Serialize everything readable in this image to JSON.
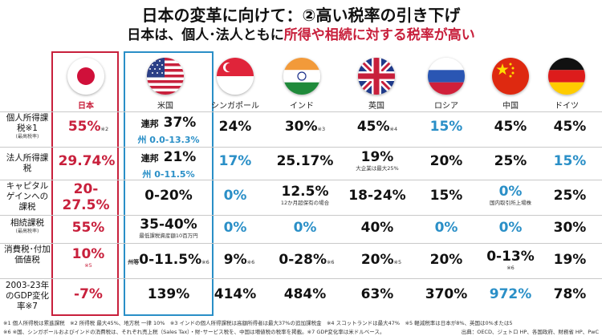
{
  "title": "日本の変革に向けて：②高い税率の引き下げ",
  "subtitle_pre": "日本は、個人･法人ともに",
  "subtitle_red": "所得や相続に対する税率が高い",
  "countries": [
    "日本",
    "米国",
    "シンガポール",
    "インド",
    "英国",
    "ロシア",
    "中国",
    "ドイツ"
  ],
  "rows": {
    "r1": {
      "label": "個人所得課税※1",
      "small": "(最高税率)"
    },
    "r2": {
      "label": "法人所得課税"
    },
    "r3": {
      "label": "キャピタルゲインへの課税"
    },
    "r4": {
      "label": "相続課税",
      "small": "(最高税率)"
    },
    "r5": {
      "label": "消費税･付加価値税"
    },
    "r6": {
      "label": "2003-23年のGDP変化率※7"
    }
  },
  "cells": {
    "jp_r1": "55%",
    "jp_r1_note": "※2",
    "us_r1_fed": "連邦",
    "us_r1": "37%",
    "us_r1_state": "州 0.0-13.3%",
    "sg_r1": "24%",
    "in_r1": "30%",
    "in_r1_note": "※3",
    "uk_r1": "45%",
    "uk_r1_note": "※4",
    "ru_r1": "15%",
    "cn_r1": "45%",
    "de_r1": "45%",
    "jp_r2": "29.74%",
    "us_r2_fed": "連邦",
    "us_r2": "21%",
    "us_r2_state": "州 0-11.5%",
    "sg_r2": "17%",
    "in_r2": "25.17%",
    "uk_r2": "19%",
    "uk_r2_sub": "大企業は最大25%",
    "ru_r2": "20%",
    "cn_r2": "25%",
    "de_r2": "15%",
    "jp_r3": "20-27.5%",
    "us_r3": "0-20%",
    "sg_r3": "0%",
    "in_r3": "12.5%",
    "in_r3_sub": "12か月超保有の場合",
    "uk_r3": "18-24%",
    "ru_r3": "15%",
    "cn_r3": "0%",
    "cn_r3_sub": "国内取引所上場株",
    "de_r3": "25%",
    "jp_r4": "55%",
    "us_r4": "35-40%",
    "us_r4_sub": "最低課税資産額10百万円",
    "sg_r4": "0%",
    "in_r4": "0%",
    "uk_r4": "40%",
    "ru_r4": "0%",
    "cn_r4": "0%",
    "de_r4": "30%",
    "jp_r5": "10%",
    "jp_r5_note": "※5",
    "us_r5_pre": "州等",
    "us_r5": "0-11.5%",
    "us_r5_note": "※6",
    "sg_r5": "9%",
    "sg_r5_note": "※6",
    "in_r5": "0-28%",
    "in_r5_note": "※6",
    "uk_r5": "20%",
    "uk_r5_note": "※5",
    "ru_r5": "20%",
    "cn_r5": "0-13%",
    "cn_r5_note": "※6",
    "de_r5": "19%",
    "jp_r6": "-7%",
    "us_r6": "139%",
    "sg_r6": "414%",
    "in_r6": "484%",
    "uk_r6": "63%",
    "ru_r6": "370%",
    "cn_r6": "972%",
    "de_r6": "78%"
  },
  "footnotes": {
    "line1": "※1 個人所得税は累進課税　※2 所得税 最大45%、地方税 一律 10%　※3 インドの個人所得課税は高額所得者は最大37%の追加課税金　※4 スコットランドは最大47%　※5 軽減税率は日本が8%、英国は0%または5",
    "line2": "※6 ※国、シンガポールおよびインドの消費税は、それぞれ売上税（Sales Tax）・財･サービス税を、中国は増値税の税率を掲載。※7 GDP変化率は米ドルベース。",
    "source": "出典：OECD、ジェトロ HP、各国政府、財務省 HP、PwC"
  }
}
